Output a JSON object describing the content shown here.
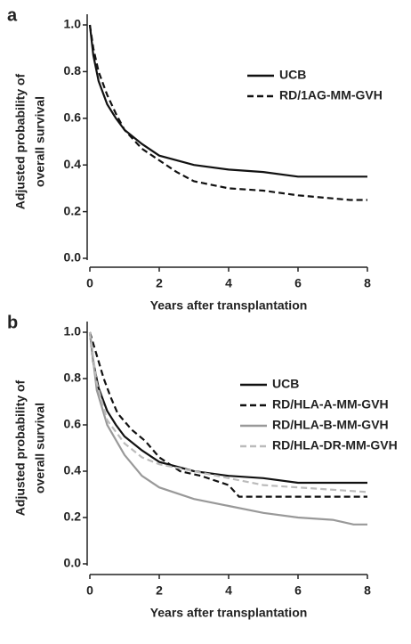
{
  "chart_data": [
    {
      "type": "line",
      "panel": "a",
      "ylabel": [
        "Adjusted probability of",
        "overall survival"
      ],
      "xlabel": "Years after transplantation",
      "xlim": [
        0,
        8
      ],
      "xticks": [
        0,
        2,
        4,
        6,
        8
      ],
      "ylim": [
        0,
        1
      ],
      "yticks": [
        {
          "value": 0,
          "label": "0.0"
        },
        0.2,
        0.4,
        0.6,
        0.8,
        {
          "value": 1,
          "label": "1.0"
        }
      ],
      "legend": "upper right",
      "series": [
        {
          "name": "UCB",
          "color": "#111111",
          "dash": false,
          "x": [
            0,
            0.1,
            0.25,
            0.5,
            0.75,
            1,
            1.5,
            2,
            3,
            4,
            5,
            6,
            8
          ],
          "values": [
            1,
            0.87,
            0.76,
            0.66,
            0.6,
            0.55,
            0.49,
            0.44,
            0.4,
            0.38,
            0.37,
            0.35,
            0.35
          ]
        },
        {
          "name": "RD/1AG-MM-GVH",
          "color": "#111111",
          "dash": true,
          "x": [
            0,
            0.1,
            0.25,
            0.5,
            0.75,
            1,
            1.5,
            2,
            2.5,
            3,
            4,
            5,
            6,
            7.5,
            8
          ],
          "values": [
            1,
            0.9,
            0.8,
            0.7,
            0.62,
            0.55,
            0.47,
            0.42,
            0.37,
            0.33,
            0.3,
            0.29,
            0.27,
            0.25,
            0.25
          ]
        }
      ]
    },
    {
      "type": "line",
      "panel": "b",
      "ylabel": [
        "Adjusted probability of",
        "overall survival"
      ],
      "xlabel": "Years after transplantation",
      "xlim": [
        0,
        8
      ],
      "xticks": [
        0,
        2,
        4,
        6,
        8
      ],
      "ylim": [
        0,
        1
      ],
      "yticks": [
        {
          "value": 0,
          "label": "0.0"
        },
        0.2,
        0.4,
        0.6,
        0.8,
        {
          "value": 1,
          "label": "1.0"
        }
      ],
      "legend": "upper right",
      "series": [
        {
          "name": "UCB",
          "color": "#111111",
          "dash": false,
          "x": [
            0,
            0.1,
            0.25,
            0.5,
            0.75,
            1,
            1.5,
            2,
            3,
            4,
            5,
            6,
            8
          ],
          "values": [
            1,
            0.87,
            0.76,
            0.66,
            0.6,
            0.55,
            0.49,
            0.44,
            0.4,
            0.38,
            0.37,
            0.35,
            0.35
          ]
        },
        {
          "name": "RD/HLA-A-MM-GVH",
          "color": "#111111",
          "dash": true,
          "x": [
            0,
            0.2,
            0.4,
            0.6,
            0.8,
            1.2,
            1.6,
            2,
            2.6,
            3.2,
            4,
            4.3,
            8
          ],
          "values": [
            1,
            0.9,
            0.8,
            0.72,
            0.65,
            0.58,
            0.53,
            0.46,
            0.4,
            0.38,
            0.34,
            0.29,
            0.29
          ]
        },
        {
          "name": "RD/HLA-B-MM-GVH",
          "color": "#999999",
          "dash": false,
          "x": [
            0,
            0.2,
            0.5,
            1,
            1.5,
            2,
            3,
            4,
            5,
            6,
            7,
            7.6,
            8
          ],
          "values": [
            1,
            0.75,
            0.6,
            0.47,
            0.38,
            0.33,
            0.28,
            0.25,
            0.22,
            0.2,
            0.19,
            0.17,
            0.17
          ]
        },
        {
          "name": "RD/HLA-DR-MM-GVH",
          "color": "#bbbbbb",
          "dash": true,
          "x": [
            0,
            0.2,
            0.5,
            1,
            1.5,
            2,
            3,
            4,
            5,
            6,
            8
          ],
          "values": [
            1,
            0.78,
            0.62,
            0.52,
            0.46,
            0.43,
            0.4,
            0.37,
            0.34,
            0.33,
            0.31
          ]
        }
      ]
    }
  ]
}
